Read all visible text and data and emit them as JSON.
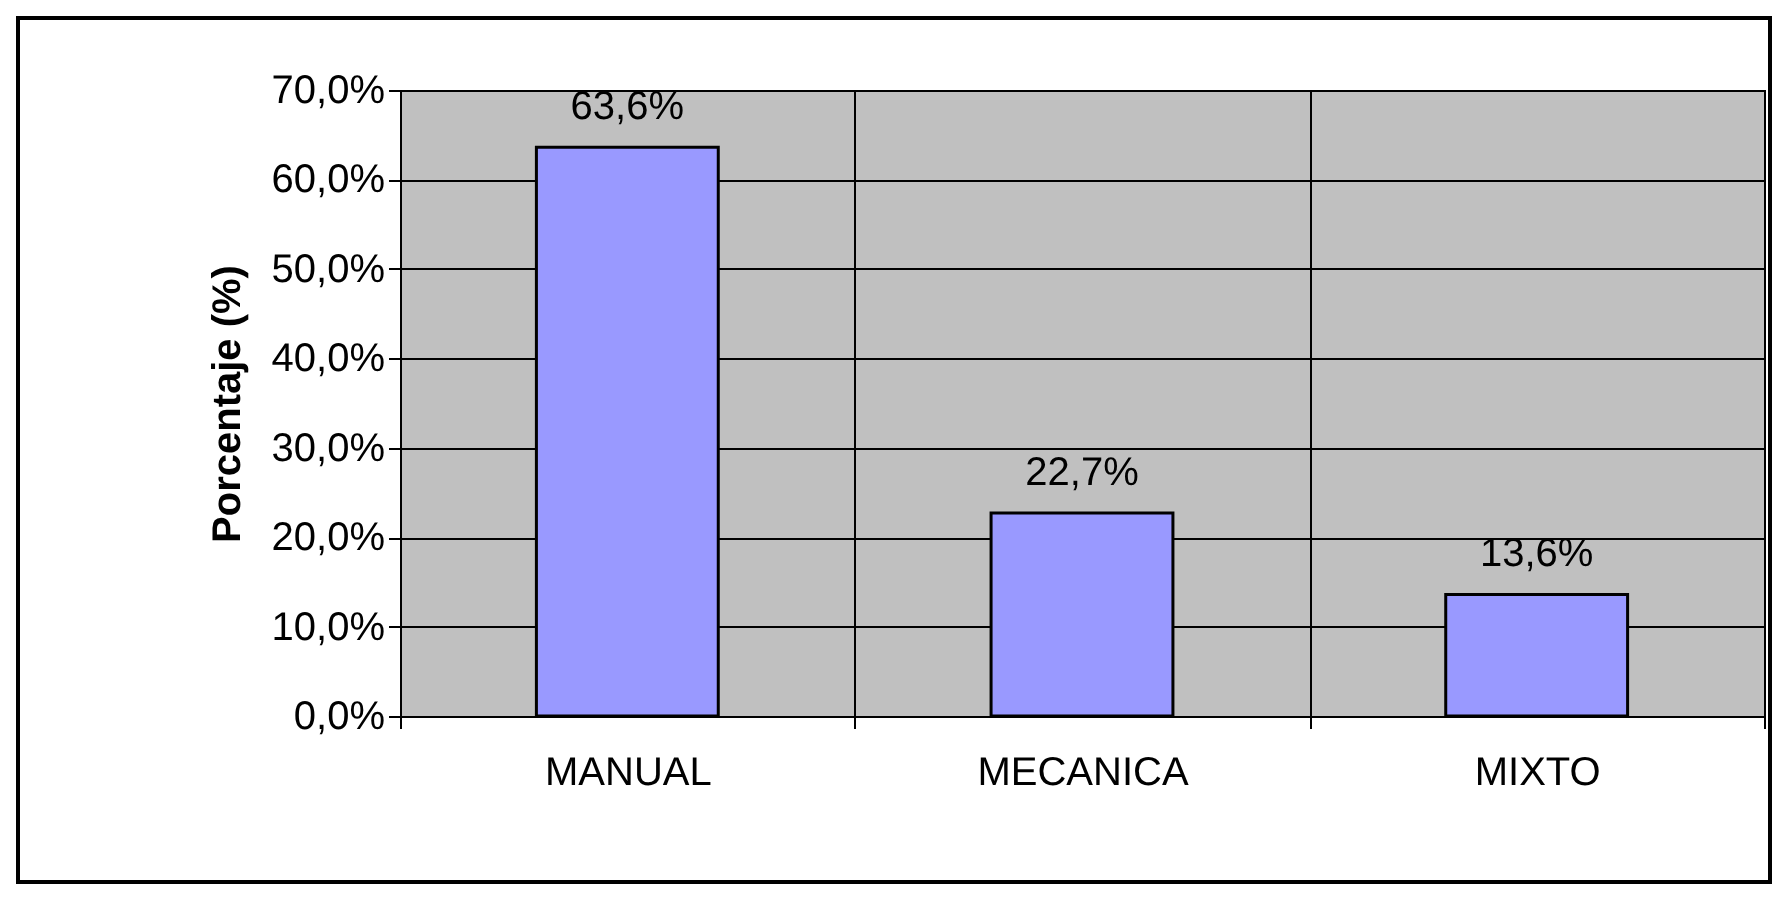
{
  "chart_data": {
    "type": "bar",
    "ylabel": "Porcentaje (%)",
    "categories": [
      "MANUAL",
      "MECANICA",
      "MIXTO"
    ],
    "values": [
      63.6,
      22.7,
      13.6
    ],
    "color": "#9999ff",
    "value_labels": [
      "63,6%",
      "22,7%",
      "13,6%"
    ],
    "ylim": [
      0,
      70
    ],
    "yticks": [
      {
        "value": 0,
        "label": "0,0%"
      },
      {
        "value": 10,
        "label": "10,0%"
      },
      {
        "value": 20,
        "label": "20,0%"
      },
      {
        "value": 30,
        "label": "30,0%"
      },
      {
        "value": 40,
        "label": "40,0%"
      },
      {
        "value": 50,
        "label": "50,0%"
      },
      {
        "value": 60,
        "label": "60,0%"
      },
      {
        "value": 70,
        "label": "70,0%"
      }
    ],
    "grid": true
  }
}
